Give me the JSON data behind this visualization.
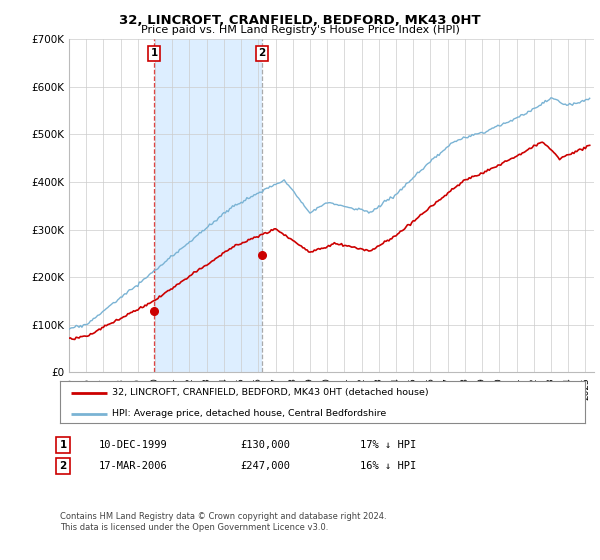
{
  "title": "32, LINCROFT, CRANFIELD, BEDFORD, MK43 0HT",
  "subtitle": "Price paid vs. HM Land Registry's House Price Index (HPI)",
  "ylim": [
    0,
    700000
  ],
  "xlim_start": 1995.0,
  "xlim_end": 2025.5,
  "hpi_color": "#7ab3d4",
  "hpi_fill_color": "#ddeeff",
  "price_color": "#cc0000",
  "sale1_date": 1999.94,
  "sale1_price": 130000,
  "sale1_label": "1",
  "sale2_date": 2006.21,
  "sale2_price": 247000,
  "sale2_label": "2",
  "legend_line1": "32, LINCROFT, CRANFIELD, BEDFORD, MK43 0HT (detached house)",
  "legend_line2": "HPI: Average price, detached house, Central Bedfordshire",
  "table_row1": [
    "1",
    "10-DEC-1999",
    "£130,000",
    "17% ↓ HPI"
  ],
  "table_row2": [
    "2",
    "17-MAR-2006",
    "£247,000",
    "16% ↓ HPI"
  ],
  "footnote": "Contains HM Land Registry data © Crown copyright and database right 2024.\nThis data is licensed under the Open Government Licence v3.0.",
  "background_color": "#ffffff",
  "grid_color": "#cccccc"
}
